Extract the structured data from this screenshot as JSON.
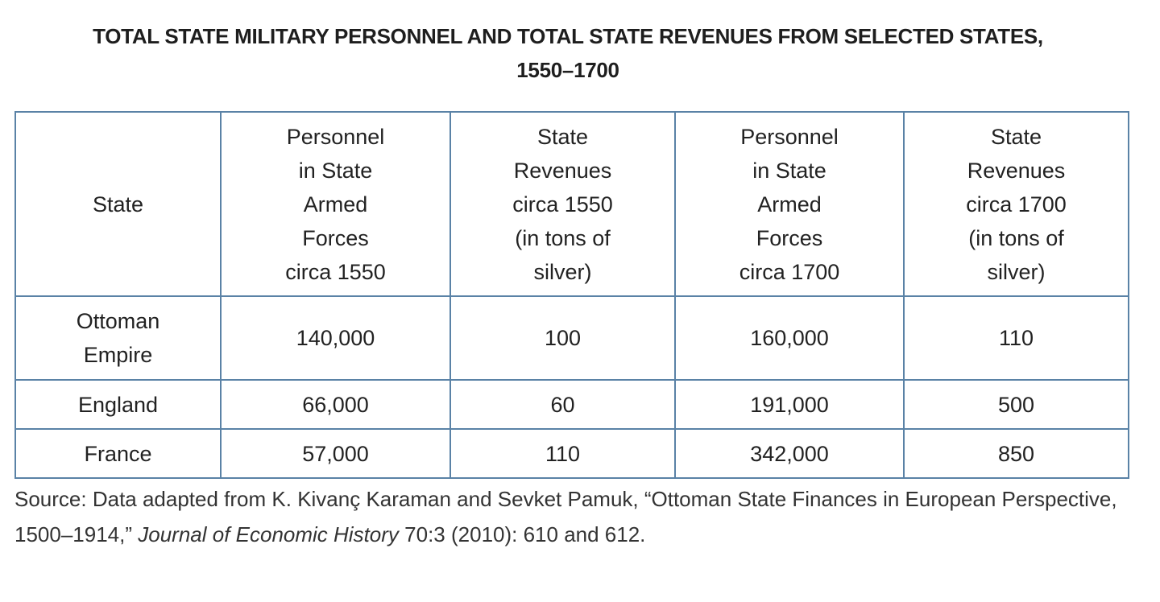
{
  "title_line1": "TOTAL STATE MILITARY PERSONNEL AND TOTAL STATE REVENUES FROM SELECTED STATES,",
  "title_line2": "1550–1700",
  "table": {
    "headers": [
      [
        "State"
      ],
      [
        "Personnel",
        "in State",
        "Armed",
        "Forces",
        "circa 1550"
      ],
      [
        "State",
        "Revenues",
        "circa 1550",
        "(in tons of",
        "silver)"
      ],
      [
        "Personnel",
        "in State",
        "Armed",
        "Forces",
        "circa 1700"
      ],
      [
        "State",
        "Revenues",
        "circa 1700",
        "(in tons of",
        "silver)"
      ]
    ],
    "rows": [
      {
        "state": [
          "Ottoman",
          "Empire"
        ],
        "values": [
          "140,000",
          "100",
          "160,000",
          "110"
        ]
      },
      {
        "state": [
          "England"
        ],
        "values": [
          "66,000",
          "60",
          "191,000",
          "500"
        ]
      },
      {
        "state": [
          "France"
        ],
        "values": [
          "57,000",
          "110",
          "342,000",
          "850"
        ]
      }
    ]
  },
  "source": {
    "prefix": "Source: Data adapted from K. Kivanç Karaman and Sevket Pamuk, “Ottoman State Finances in European Perspective, 1500–1914,” ",
    "journal": "Journal of Economic History",
    "suffix": " 70:3 (2010): 610 and 612."
  },
  "colors": {
    "border": "#5a82a6"
  }
}
